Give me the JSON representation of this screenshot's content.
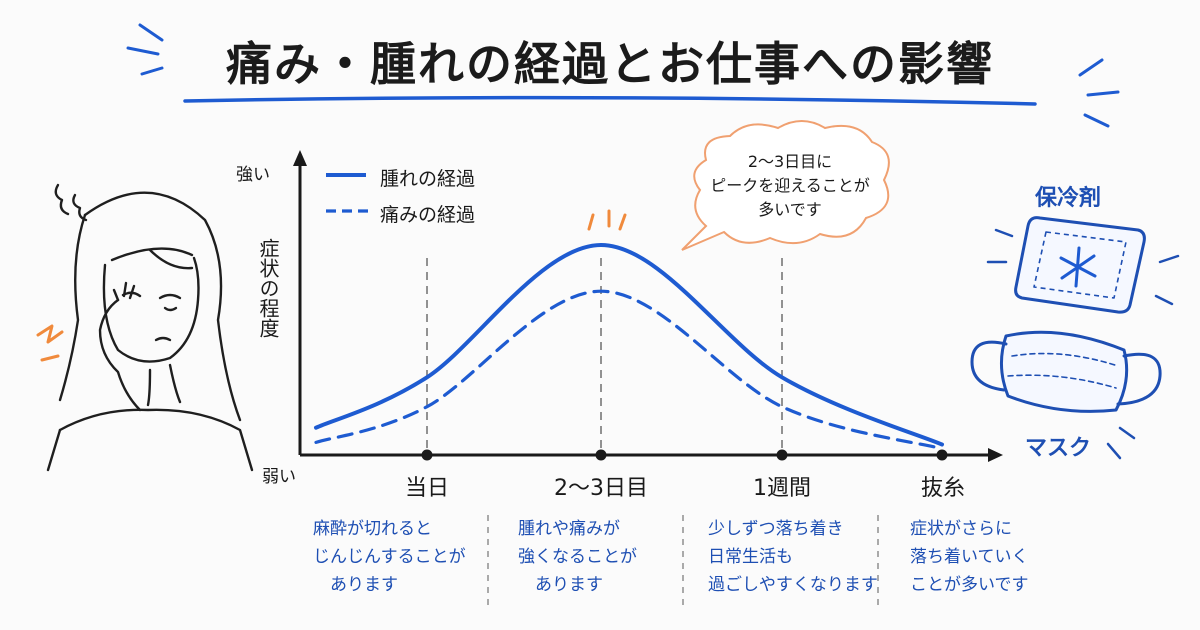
{
  "title": "痛み・腫れの経過とお仕事への影響",
  "colors": {
    "accent": "#1e5bd1",
    "orange": "#f08a3c",
    "ink": "#1a1a1a"
  },
  "chart_data": {
    "type": "line",
    "categories": [
      "当日",
      "2～3日目",
      "1週間",
      "抜糸"
    ],
    "y_label": "症状の程度",
    "y_top_label": "強い",
    "y_bottom_label": "弱い",
    "series": [
      {
        "name": "腫れの経過",
        "style": "solid",
        "values": [
          0.37,
          1.0,
          0.37,
          0.05
        ]
      },
      {
        "name": "痛みの経過",
        "style": "dashed",
        "values": [
          0.23,
          0.78,
          0.23,
          0.03
        ]
      }
    ],
    "start_values": [
      0.13,
      0.06
    ],
    "ylim": [
      0,
      1.0
    ],
    "grid": "vertical dashed at each category",
    "legend": "top-left"
  },
  "callout": "2～3日目に\nピークを迎えることが\n多いです",
  "notes": [
    "麻酔が切れると\nじんじんすることが\n　あります",
    "腫れや痛みが\n強くなることが\n　あります",
    "少しずつ落ち着き\n日常生活も\n過ごしやすくなります",
    "症状がさらに\n落ち着いていく\nことが多いです"
  ],
  "side": {
    "ice_pack": "保冷剤",
    "mask": "マスク"
  },
  "icons": [
    "snowflake-icon",
    "ice-pack-icon",
    "mask-icon",
    "woman-cheek-pain-icon"
  ]
}
